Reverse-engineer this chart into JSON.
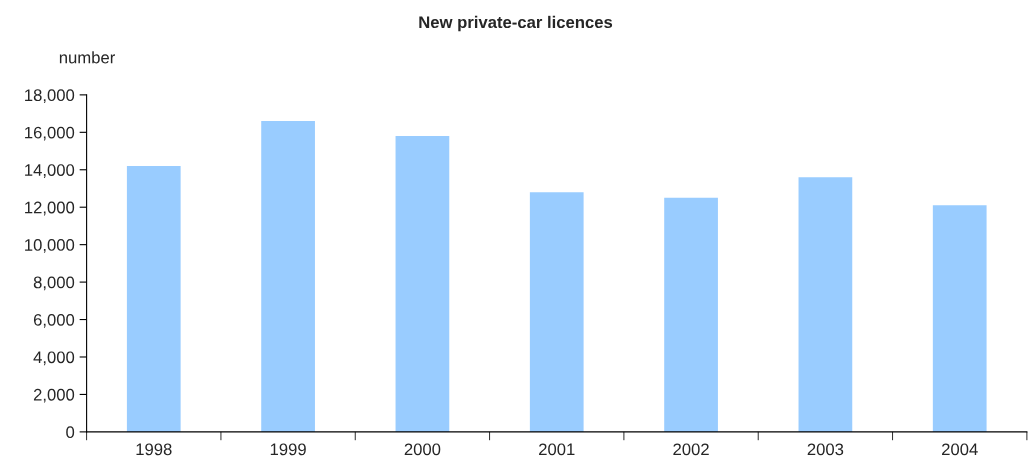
{
  "chart_data": {
    "type": "bar",
    "title": "New private-car licences",
    "ylabel": "number",
    "categories": [
      "1998",
      "1999",
      "2000",
      "2001",
      "2002",
      "2003",
      "2004"
    ],
    "values": [
      14200,
      16600,
      15800,
      12800,
      12500,
      13600,
      12100
    ],
    "color": "#99ccff",
    "ylim": [
      0,
      18000
    ],
    "yticks": [
      {
        "value": 0,
        "label": "0"
      },
      {
        "value": 2000,
        "label": "2,000"
      },
      {
        "value": 4000,
        "label": "4,000"
      },
      {
        "value": 6000,
        "label": "6,000"
      },
      {
        "value": 8000,
        "label": "8,000"
      },
      {
        "value": 10000,
        "label": "10,000"
      },
      {
        "value": 12000,
        "label": "12,000"
      },
      {
        "value": 14000,
        "label": "14,000"
      },
      {
        "value": 16000,
        "label": "16,000"
      },
      {
        "value": 18000,
        "label": "18,000"
      }
    ],
    "grid": false,
    "legend": false
  }
}
